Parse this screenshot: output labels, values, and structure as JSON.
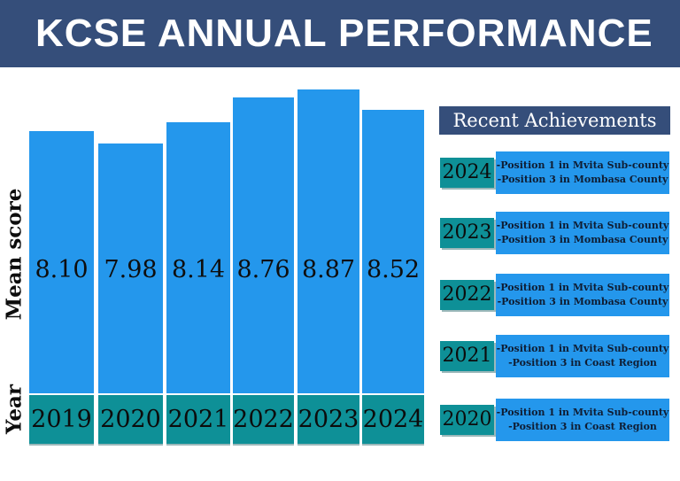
{
  "header": {
    "title": "KCSE ANNUAL PERFORMANCE"
  },
  "chart_data": {
    "type": "bar",
    "title": "KCSE ANNUAL PERFORMANCE",
    "categories": [
      "2019",
      "2020",
      "2021",
      "2022",
      "2023",
      "2024"
    ],
    "values": [
      8.1,
      7.98,
      8.14,
      8.76,
      8.87,
      8.52
    ],
    "value_labels": [
      "8.10",
      "7.98",
      "8.14",
      "8.76",
      "8.87",
      "8.52"
    ],
    "xlabel": "Year",
    "ylabel": "Mean score",
    "legend": "none",
    "grid": "off",
    "bar_color": "#2497ec",
    "year_box_color": "#0e9097",
    "value_label_position": "inside-bar, common baseline across bars"
  },
  "achievements": {
    "title": "Recent Achievements",
    "rows": [
      {
        "year": "2024",
        "lines": [
          "-Position 1 in Mvita Sub-county",
          "-Position 3 in Mombasa County"
        ]
      },
      {
        "year": "2023",
        "lines": [
          "-Position 1 in Mvita Sub-county",
          "-Position 3 in Mombasa County"
        ]
      },
      {
        "year": "2022",
        "lines": [
          "-Position 1 in Mvita Sub-county",
          "-Position 3 in Mombasa County"
        ]
      },
      {
        "year": "2021",
        "lines": [
          "-Position 1 in Mvita Sub-county",
          "-Position 3 in Coast Region"
        ]
      },
      {
        "year": "2020",
        "lines": [
          "-Position 1 in Mvita Sub-county",
          "-Position 3 in Coast Region"
        ]
      }
    ]
  },
  "colors": {
    "navy": "#354e7a",
    "bar_blue": "#2497ec",
    "teal": "#0e9097",
    "score_text": "#0e0e0e",
    "achievement_text": "#0f1d33",
    "background": "#ffffff"
  }
}
